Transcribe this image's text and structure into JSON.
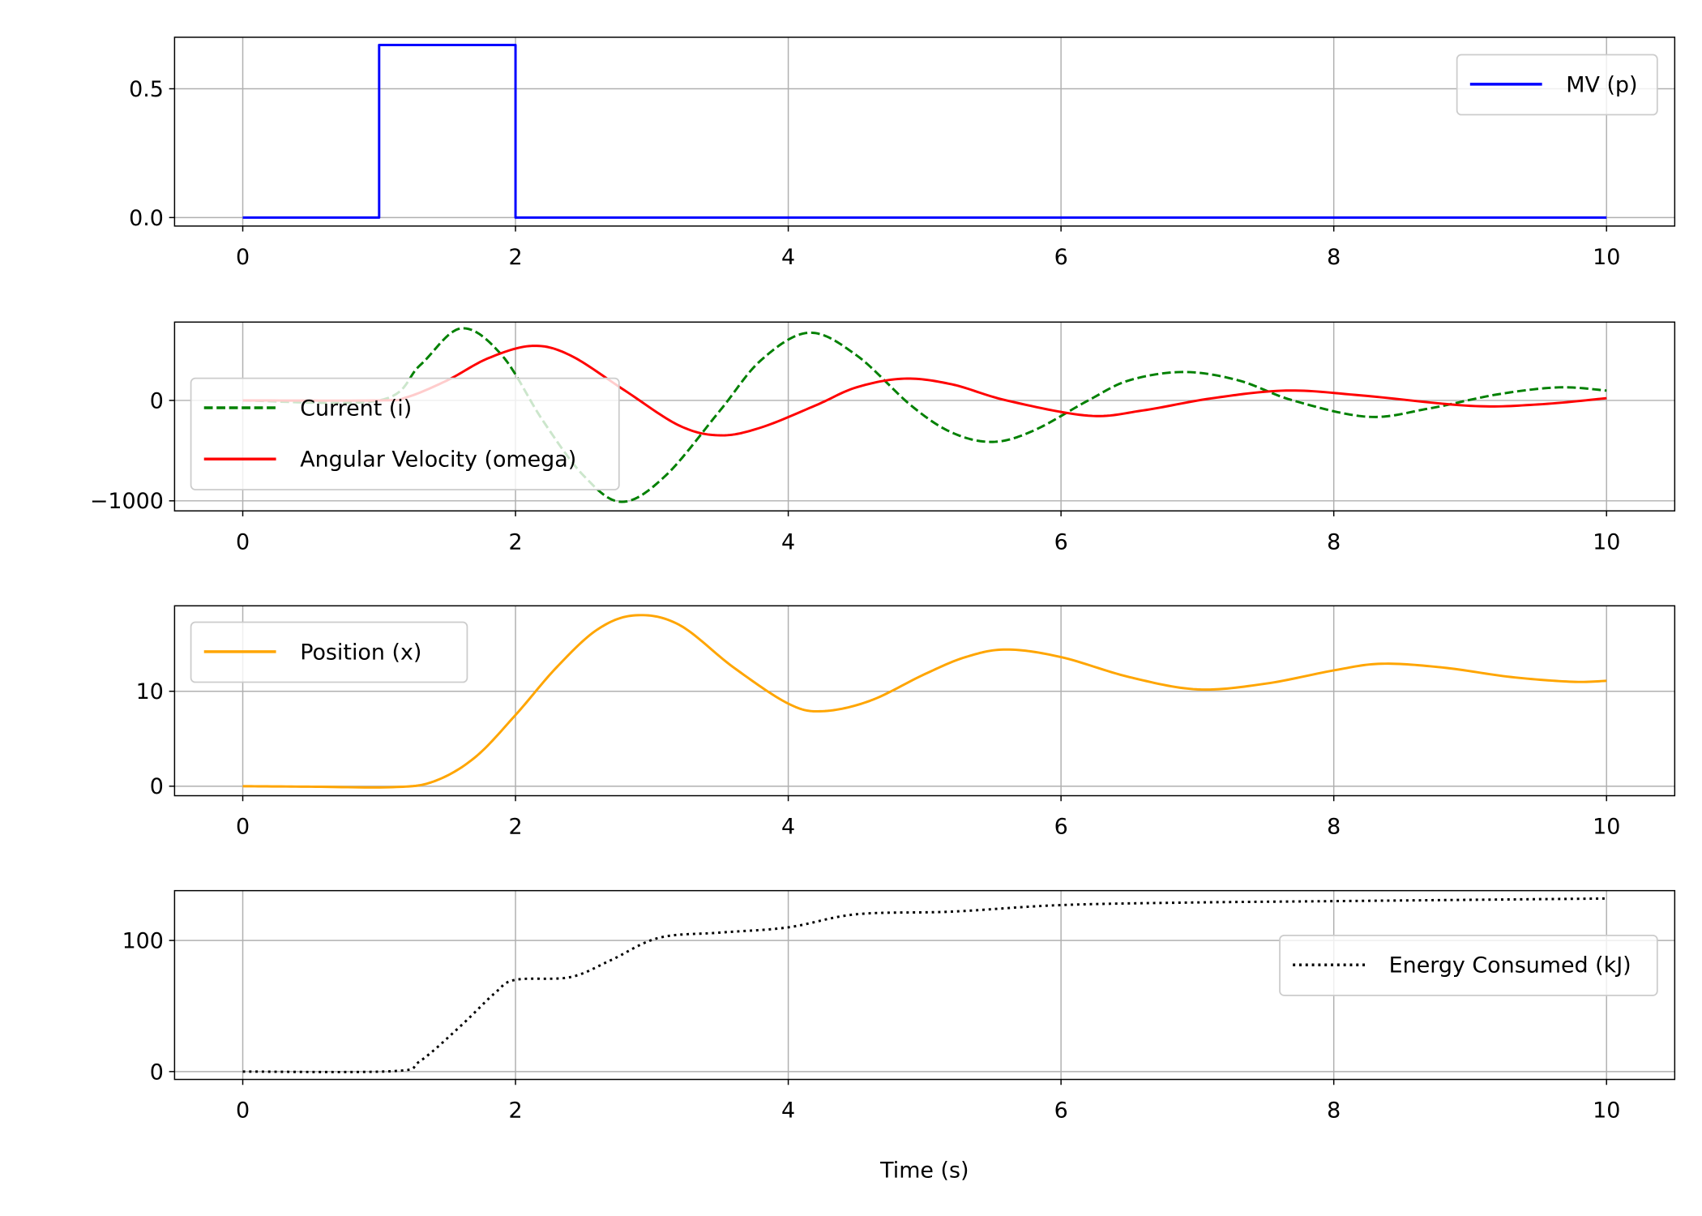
{
  "chart_data": [
    {
      "type": "line",
      "xlim": [
        -0.5,
        10.5
      ],
      "ylim": [
        -0.033,
        0.7
      ],
      "xticks": [
        0,
        2,
        4,
        6,
        8,
        10
      ],
      "yticks": [
        0.0,
        0.5
      ],
      "ytick_labels": [
        "0.0",
        "0.5"
      ],
      "grid": true,
      "legend": "upper-right",
      "series": [
        {
          "name": "MV (p)",
          "color": "#0000ff",
          "style": "solid",
          "interp": "linear",
          "points": [
            [
              0,
              0
            ],
            [
              1,
              0
            ],
            [
              1,
              0.67
            ],
            [
              2,
              0.67
            ],
            [
              2,
              0
            ],
            [
              10,
              0
            ]
          ]
        }
      ]
    },
    {
      "type": "line",
      "xlim": [
        -0.5,
        10.5
      ],
      "ylim": [
        -1100,
        780
      ],
      "xticks": [
        0,
        2,
        4,
        6,
        8,
        10
      ],
      "yticks": [
        -1000,
        0
      ],
      "ytick_labels": [
        "−1000",
        "0"
      ],
      "grid": true,
      "legend": "center-left",
      "series": [
        {
          "name": "Current (i)",
          "color": "#008000",
          "style": "dashed",
          "interp": "smooth",
          "points": [
            [
              0,
              0
            ],
            [
              1,
              0
            ],
            [
              1.3,
              350
            ],
            [
              1.6,
              717
            ],
            [
              1.9,
              450
            ],
            [
              2.2,
              -200
            ],
            [
              2.5,
              -750
            ],
            [
              2.78,
              -1010
            ],
            [
              3.1,
              -750
            ],
            [
              3.5,
              -100
            ],
            [
              3.8,
              400
            ],
            [
              4.15,
              674
            ],
            [
              4.5,
              450
            ],
            [
              4.9,
              -50
            ],
            [
              5.2,
              -320
            ],
            [
              5.5,
              -413
            ],
            [
              5.8,
              -300
            ],
            [
              6.2,
              0
            ],
            [
              6.5,
              200
            ],
            [
              6.9,
              283
            ],
            [
              7.3,
              200
            ],
            [
              7.7,
              0
            ],
            [
              8.25,
              -163
            ],
            [
              8.7,
              -80
            ],
            [
              9.2,
              60
            ],
            [
              9.65,
              130
            ],
            [
              10,
              98
            ]
          ]
        },
        {
          "name": "Angular Velocity (omega)",
          "color": "#ff0000",
          "style": "solid",
          "interp": "smooth",
          "points": [
            [
              0,
              0
            ],
            [
              1,
              0
            ],
            [
              1.2,
              30
            ],
            [
              1.5,
              200
            ],
            [
              1.8,
              420
            ],
            [
              2.12,
              543
            ],
            [
              2.4,
              450
            ],
            [
              2.8,
              100
            ],
            [
              3.2,
              -250
            ],
            [
              3.5,
              -348
            ],
            [
              3.8,
              -270
            ],
            [
              4.2,
              -50
            ],
            [
              4.5,
              130
            ],
            [
              4.85,
              217
            ],
            [
              5.2,
              160
            ],
            [
              5.6,
              0
            ],
            [
              6.2,
              -152
            ],
            [
              6.6,
              -100
            ],
            [
              7.1,
              20
            ],
            [
              7.65,
              98
            ],
            [
              8.2,
              50
            ],
            [
              9.0,
              -54
            ],
            [
              9.5,
              -40
            ],
            [
              10,
              22
            ]
          ]
        }
      ]
    },
    {
      "type": "line",
      "xlim": [
        -0.5,
        10.5
      ],
      "ylim": [
        -1.0,
        19.0
      ],
      "xticks": [
        0,
        2,
        4,
        6,
        8,
        10
      ],
      "yticks": [
        0,
        10
      ],
      "ytick_labels": [
        "0",
        "10"
      ],
      "grid": true,
      "legend": "upper-left",
      "series": [
        {
          "name": "Position (x)",
          "color": "#ffa500",
          "style": "solid",
          "interp": "smooth",
          "points": [
            [
              0,
              0
            ],
            [
              0.5,
              -0.05
            ],
            [
              1.1,
              -0.1
            ],
            [
              1.4,
              0.5
            ],
            [
              1.7,
              3
            ],
            [
              2,
              7.5
            ],
            [
              2.3,
              12.5
            ],
            [
              2.6,
              16.5
            ],
            [
              2.88,
              18
            ],
            [
              3.2,
              17
            ],
            [
              3.6,
              12.5
            ],
            [
              4.0,
              8.7
            ],
            [
              4.25,
              7.9
            ],
            [
              4.6,
              9
            ],
            [
              5.0,
              11.8
            ],
            [
              5.3,
              13.6
            ],
            [
              5.6,
              14.4
            ],
            [
              6.0,
              13.6
            ],
            [
              6.5,
              11.5
            ],
            [
              7.0,
              10.2
            ],
            [
              7.5,
              10.8
            ],
            [
              8.0,
              12.2
            ],
            [
              8.35,
              12.9
            ],
            [
              8.8,
              12.5
            ],
            [
              9.3,
              11.5
            ],
            [
              9.75,
              11.0
            ],
            [
              10,
              11.1
            ]
          ]
        }
      ]
    },
    {
      "type": "line",
      "xlim": [
        -0.5,
        10.5
      ],
      "ylim": [
        -6,
        138
      ],
      "xticks": [
        0,
        2,
        4,
        6,
        8,
        10
      ],
      "yticks": [
        0,
        100
      ],
      "ytick_labels": [
        "0",
        "100"
      ],
      "grid": true,
      "legend": "center-right",
      "xlabel": "Time (s)",
      "series": [
        {
          "name": "Energy Consumed (kJ)",
          "color": "#000000",
          "style": "dotted",
          "interp": "smooth",
          "points": [
            [
              0,
              0
            ],
            [
              1.1,
              0.3
            ],
            [
              1.3,
              8
            ],
            [
              1.6,
              35
            ],
            [
              1.85,
              60
            ],
            [
              2.0,
              70
            ],
            [
              2.4,
              72
            ],
            [
              2.7,
              85
            ],
            [
              3.05,
              102
            ],
            [
              3.5,
              106
            ],
            [
              4.0,
              110
            ],
            [
              4.5,
              120
            ],
            [
              5.2,
              122
            ],
            [
              6,
              127
            ],
            [
              7,
              129
            ],
            [
              8,
              130
            ],
            [
              10,
              132
            ]
          ]
        }
      ]
    }
  ]
}
